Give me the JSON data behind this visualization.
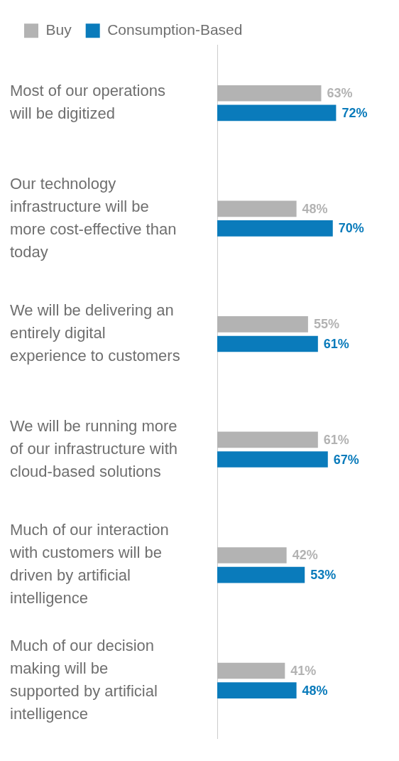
{
  "chart_data": {
    "type": "bar",
    "orientation": "horizontal",
    "categories": [
      "Most of our operations will be digitized",
      "Our technology infrastructure will be more cost-effective than today",
      "We will be delivering an entirely digital experience to customers",
      "We will be running more of our infrastructure with cloud-based solutions",
      "Much of our interaction with customers will be driven by artificial intelligence",
      "Much of our decision making will be supported by artificial intelligence"
    ],
    "series": [
      {
        "name": "Buy",
        "color": "#b3b3b3",
        "values": [
          63,
          48,
          55,
          61,
          42,
          41
        ],
        "value_labels": [
          "63%",
          "48%",
          "55%",
          "61%",
          "42%",
          "41%"
        ]
      },
      {
        "name": "Consumption-Based",
        "color": "#0a7bbb",
        "values": [
          72,
          70,
          61,
          67,
          53,
          48
        ],
        "value_labels": [
          "72%",
          "70%",
          "61%",
          "67%",
          "53%",
          "48%"
        ]
      }
    ],
    "legend": "top left",
    "grid": false
  }
}
